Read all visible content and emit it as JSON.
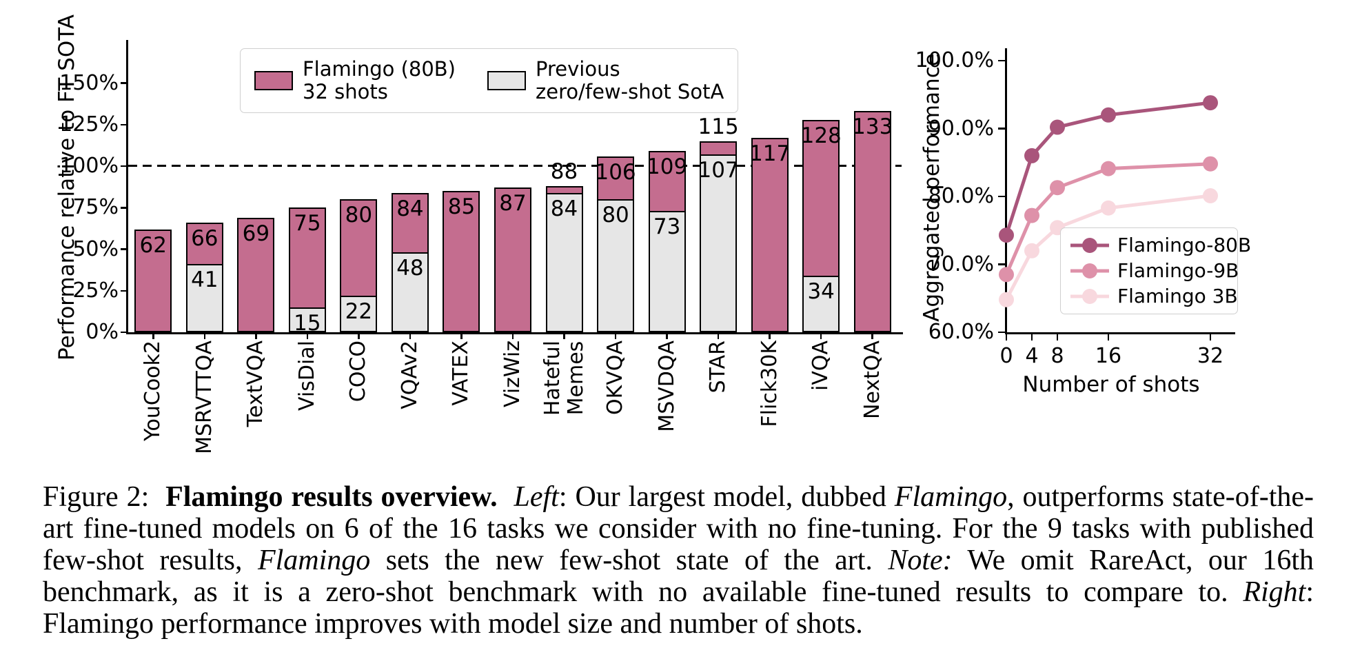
{
  "figure": {
    "caption_segments": [
      {
        "style": "normal",
        "text": "Figure 2:  "
      },
      {
        "style": "bold",
        "text": "Flamingo results overview."
      },
      {
        "style": "normal",
        "text": "  "
      },
      {
        "style": "italic",
        "text": "Left"
      },
      {
        "style": "normal",
        "text": ": Our largest model, dubbed "
      },
      {
        "style": "italic",
        "text": "Flamingo"
      },
      {
        "style": "normal",
        "text": ", outperforms state-of-the-art fine-tuned models on 6 of the 16 tasks we consider with no fine-tuning. For the 9 tasks with published few-shot results, "
      },
      {
        "style": "italic",
        "text": "Flamingo"
      },
      {
        "style": "normal",
        "text": " sets the new few-shot state of the art. "
      },
      {
        "style": "italic",
        "text": "Note:"
      },
      {
        "style": "normal",
        "text": " We omit RareAct, our 16th benchmark, as it is a zero-shot benchmark with no available fine-tuned results to compare to. "
      },
      {
        "style": "italic",
        "text": "Right"
      },
      {
        "style": "normal",
        "text": ": Flamingo performance improves with model size and number of shots."
      }
    ]
  },
  "chart_data": [
    {
      "type": "bar",
      "title": "",
      "xlabel": "",
      "ylabel": "Performance relative to FT SOTA",
      "ylim": [
        0,
        175
      ],
      "grid": false,
      "reference_line_pct": 100,
      "legend_position": "upper left",
      "yticks": [
        "0%",
        "25%",
        "50%",
        "75%",
        "100%",
        "125%",
        "150%"
      ],
      "ytick_values": [
        0,
        25,
        50,
        75,
        100,
        125,
        150
      ],
      "categories": [
        "YouCook2",
        "MSRVTTQA",
        "TextVQA",
        "VisDial",
        "COCO",
        "VQAv2",
        "VATEX",
        "VizWiz",
        "Hateful\nMemes",
        "OKVQA",
        "MSVDQA",
        "STAR",
        "Flick30K",
        "iVQA",
        "NextQA"
      ],
      "series": [
        {
          "name": "Flamingo (80B) 32 shots",
          "color": "#c46d8f",
          "values": [
            62,
            66,
            69,
            75,
            80,
            84,
            85,
            87,
            88,
            106,
            109,
            115,
            117,
            128,
            133
          ]
        },
        {
          "name": "Previous zero/few-shot SotA",
          "color": "#e6e6e6",
          "values": [
            null,
            41,
            null,
            15,
            22,
            48,
            null,
            null,
            84,
            80,
            73,
            107,
            null,
            34,
            null
          ]
        }
      ],
      "legend": [
        {
          "label": "Flamingo (80B)\n32 shots",
          "color": "#c46d8f"
        },
        {
          "label": "Previous\nzero/few-shot SotA",
          "color": "#e6e6e6"
        }
      ]
    },
    {
      "type": "line",
      "title": "",
      "xlabel": "Number of shots",
      "ylabel": "Aggregated performance",
      "ylim": [
        60,
        102
      ],
      "grid": false,
      "legend_position": "lower right",
      "x": [
        0,
        4,
        8,
        16,
        32
      ],
      "xticks": [
        "0",
        "4",
        "8",
        "16",
        "32"
      ],
      "yticks": [
        "60.0%",
        "70.0%",
        "80.0%",
        "90.0%",
        "100.0%"
      ],
      "ytick_values": [
        60,
        70,
        80,
        90,
        100
      ],
      "series": [
        {
          "name": "Flamingo-80B",
          "color": "#a9557b",
          "values": [
            74.3,
            86.0,
            90.2,
            92.0,
            93.8
          ]
        },
        {
          "name": "Flamingo-9B",
          "color": "#de91a9",
          "values": [
            68.5,
            77.2,
            81.3,
            84.1,
            84.8
          ]
        },
        {
          "name": "Flamingo 3B",
          "color": "#f8d8de",
          "values": [
            64.8,
            72.0,
            75.4,
            78.3,
            80.1
          ]
        }
      ]
    }
  ]
}
